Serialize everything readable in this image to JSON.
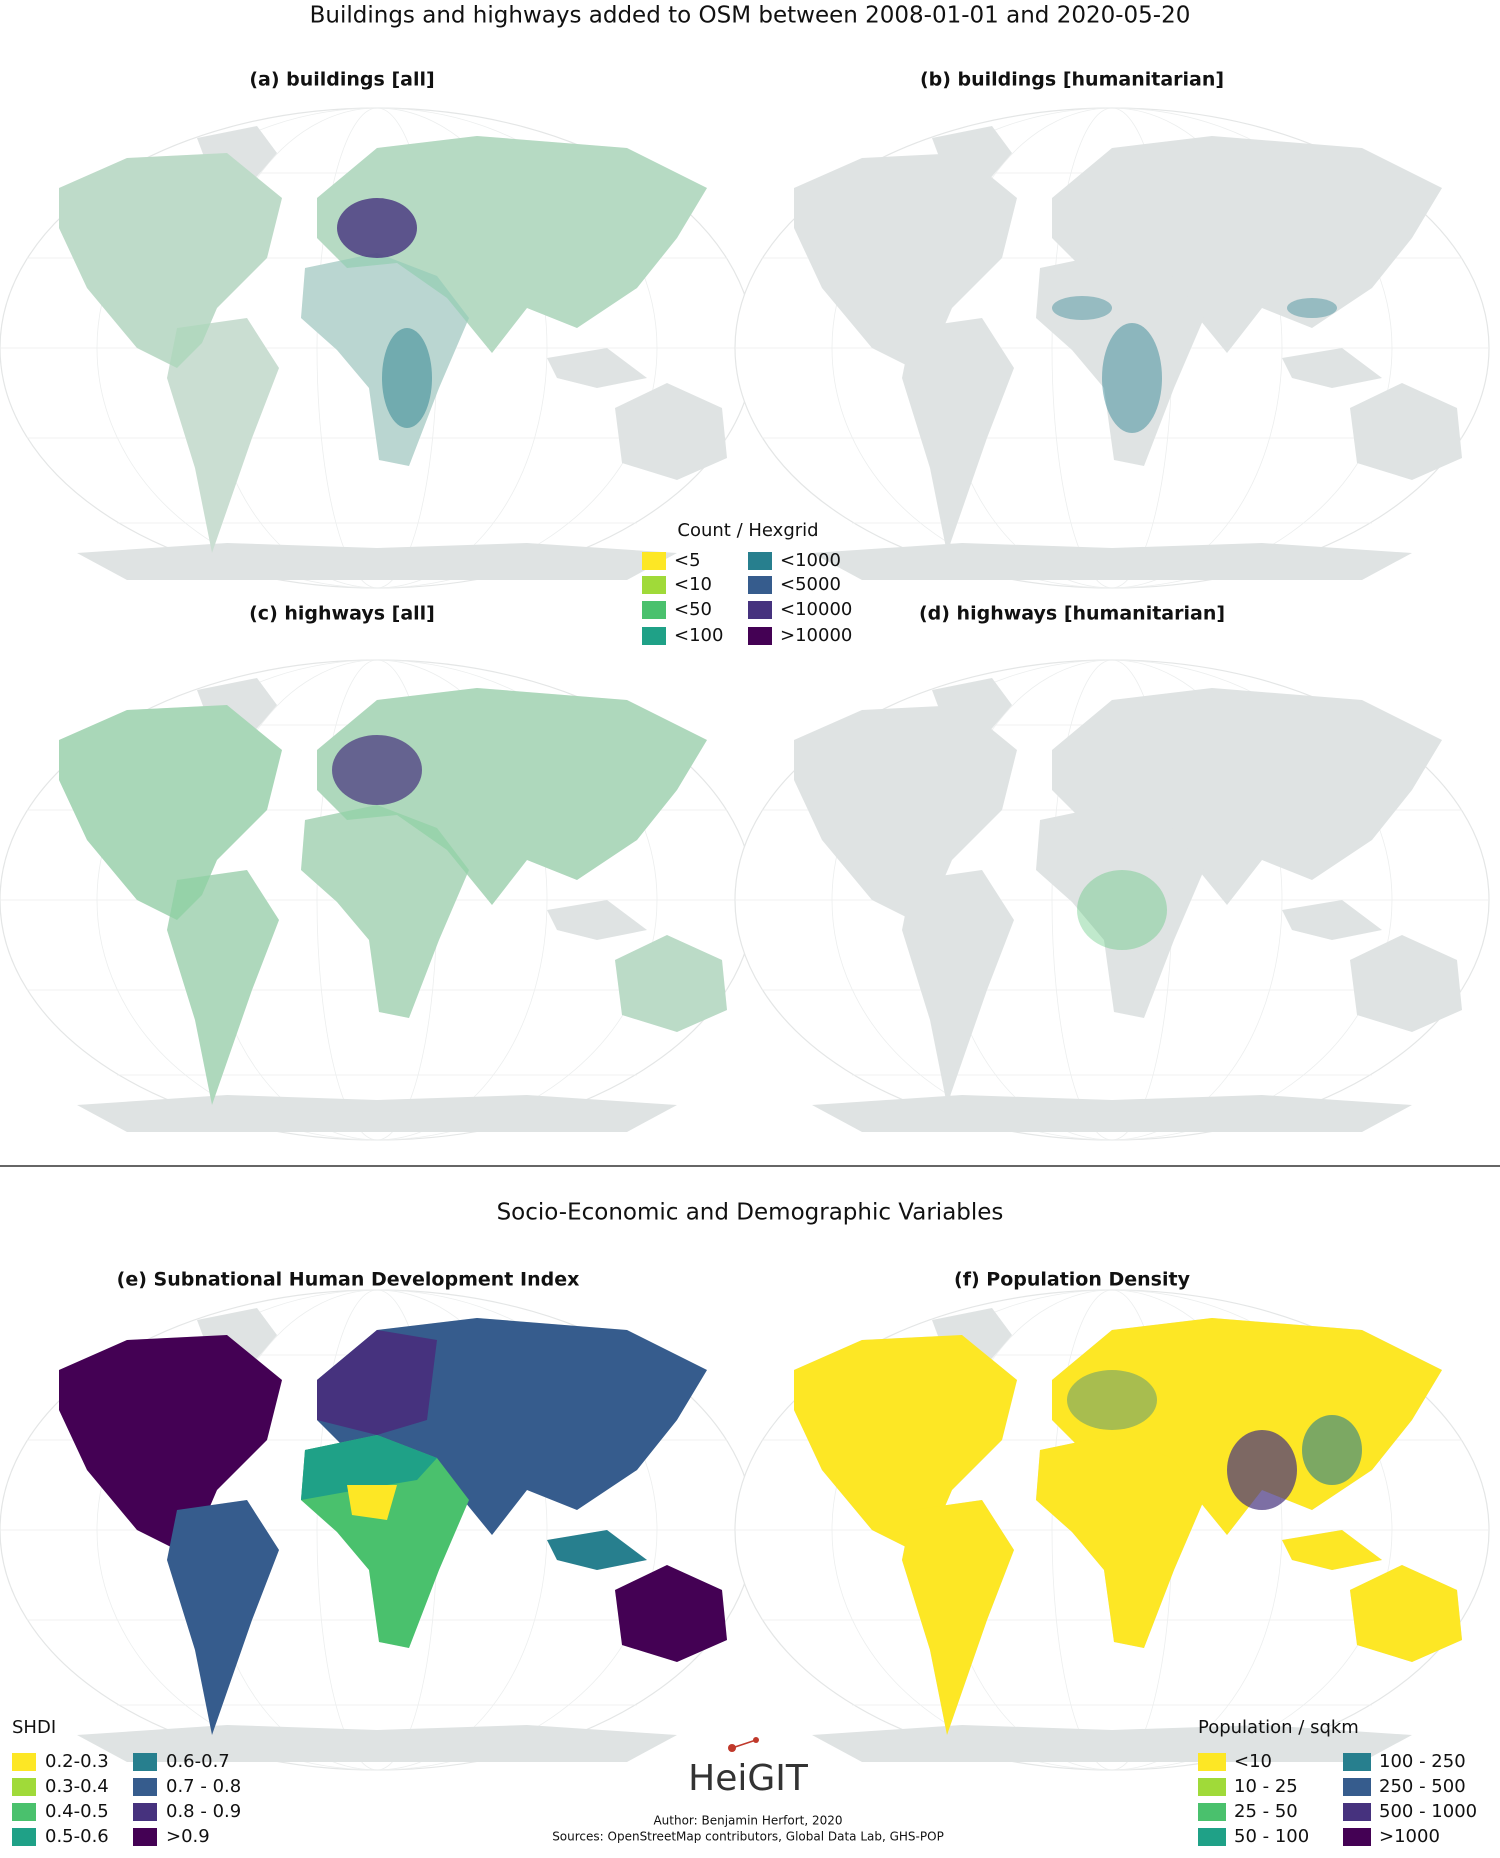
{
  "title": "Buildings and highways added to OSM between 2008-01-01 and 2020-05-20",
  "panels_top": [
    {
      "label": "(a) buildings [all]"
    },
    {
      "label": "(b) buildings [humanitarian]"
    },
    {
      "label": "(c) highways [all]"
    },
    {
      "label": "(d) highways [humanitarian]"
    }
  ],
  "count_legend": {
    "title": "Count / Hexgrid",
    "items": [
      {
        "label": "<5",
        "color": "#fde725"
      },
      {
        "label": "<10",
        "color": "#a0da39"
      },
      {
        "label": "<50",
        "color": "#4ac16d"
      },
      {
        "label": "<100",
        "color": "#1fa187"
      },
      {
        "label": "<1000",
        "color": "#277f8e"
      },
      {
        "label": "<5000",
        "color": "#365c8d"
      },
      {
        "label": "<10000",
        "color": "#46327e"
      },
      {
        "label": ">10000",
        "color": "#440154"
      }
    ]
  },
  "section_title": "Socio-Economic and Demographic Variables",
  "panels_bottom": [
    {
      "label": "(e) Subnational Human Development Index"
    },
    {
      "label": "(f) Population Density"
    }
  ],
  "shdi_legend": {
    "title": "SHDI",
    "items": [
      {
        "label": "0.2-0.3",
        "color": "#fde725"
      },
      {
        "label": "0.3-0.4",
        "color": "#a0da39"
      },
      {
        "label": "0.4-0.5",
        "color": "#4ac16d"
      },
      {
        "label": "0.5-0.6",
        "color": "#1fa187"
      },
      {
        "label": "0.6-0.7",
        "color": "#277f8e"
      },
      {
        "label": "0.7 - 0.8",
        "color": "#365c8d"
      },
      {
        "label": "0.8 - 0.9",
        "color": "#46327e"
      },
      {
        "label": ">0.9",
        "color": "#440154"
      }
    ]
  },
  "population_legend": {
    "title": "Population / sqkm",
    "items": [
      {
        "label": "<10",
        "color": "#fde725"
      },
      {
        "label": "10 - 25",
        "color": "#a0da39"
      },
      {
        "label": "25 - 50",
        "color": "#4ac16d"
      },
      {
        "label": "50 - 100",
        "color": "#1fa187"
      },
      {
        "label": "100 - 250",
        "color": "#277f8e"
      },
      {
        "label": "250 - 500",
        "color": "#365c8d"
      },
      {
        "label": "500 - 1000",
        "color": "#46327e"
      },
      {
        "label": ">1000",
        "color": "#440154"
      }
    ]
  },
  "logo": "HeiGIT",
  "author": "Author: Benjamin Herfort, 2020",
  "sources": "Sources: OpenStreetMap contributors, Global Data Lab, GHS-POP"
}
